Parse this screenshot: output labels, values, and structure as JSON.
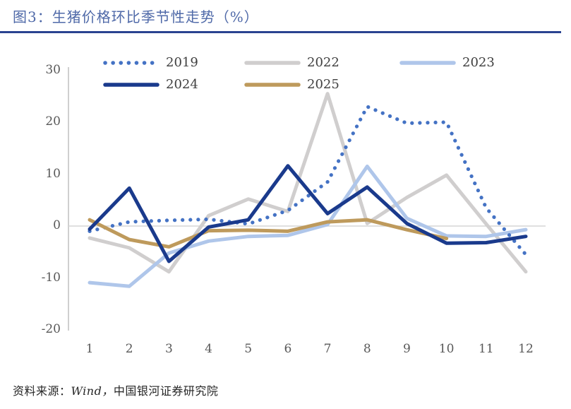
{
  "header": {
    "title": "图3：生猪价格环比季节性走势（%）"
  },
  "chart_data": {
    "type": "line",
    "title": "生猪价格环比季节性走势（%）",
    "xlabel": "",
    "ylabel": "",
    "x": [
      1,
      2,
      3,
      4,
      5,
      6,
      7,
      8,
      9,
      10,
      11,
      12
    ],
    "x_tick_labels": [
      "1",
      "2",
      "3",
      "4",
      "5",
      "6",
      "7",
      "8",
      "9",
      "10",
      "11",
      "12"
    ],
    "y_ticks": [
      30,
      20,
      10,
      0,
      -10,
      -20
    ],
    "ylim": [
      -20,
      30
    ],
    "grid": "zero-line-only",
    "legend_position": "top",
    "series": [
      {
        "name": "2019",
        "style": "dotted",
        "color": "#4472C4",
        "values": [
          -1.0,
          0.8,
          1.1,
          1.3,
          0.4,
          3.0,
          8.5,
          23.0,
          19.8,
          20.0,
          3.5,
          -5.5
        ]
      },
      {
        "name": "2022",
        "style": "solid",
        "color": "#D0CECE",
        "values": [
          -2.3,
          -4.2,
          -8.8,
          2.0,
          5.2,
          2.8,
          25.5,
          0.5,
          5.5,
          9.8,
          0.4,
          -8.8
        ]
      },
      {
        "name": "2023",
        "style": "solid",
        "color": "#AFC6EA",
        "values": [
          -10.9,
          -11.6,
          -5.2,
          -2.9,
          -2.0,
          -1.8,
          0.3,
          11.5,
          1.5,
          -1.9,
          -2.0,
          -0.7
        ]
      },
      {
        "name": "2024",
        "style": "solid",
        "color": "#1A3A8C",
        "values": [
          -0.6,
          7.3,
          -6.8,
          -0.2,
          1.2,
          11.6,
          2.4,
          7.5,
          0.5,
          -3.3,
          -3.2,
          -2.0
        ]
      },
      {
        "name": "2025",
        "style": "solid",
        "color": "#BE9A5C",
        "values": [
          1.2,
          -2.6,
          -4.0,
          -0.9,
          -0.8,
          -1.0,
          0.8,
          1.2,
          -0.7,
          -2.4
        ]
      }
    ]
  },
  "footer": {
    "source_prefix": "资料来源：",
    "source_wind": "Wind，",
    "source_suffix": "中国银河证券研究院"
  },
  "colors": {
    "title_blue": "#4F69A8",
    "rule_blue": "#2A4390",
    "axis_line": "#BFBFBF",
    "zero_line": "#D6D6D6",
    "axis_text": "#595959"
  }
}
